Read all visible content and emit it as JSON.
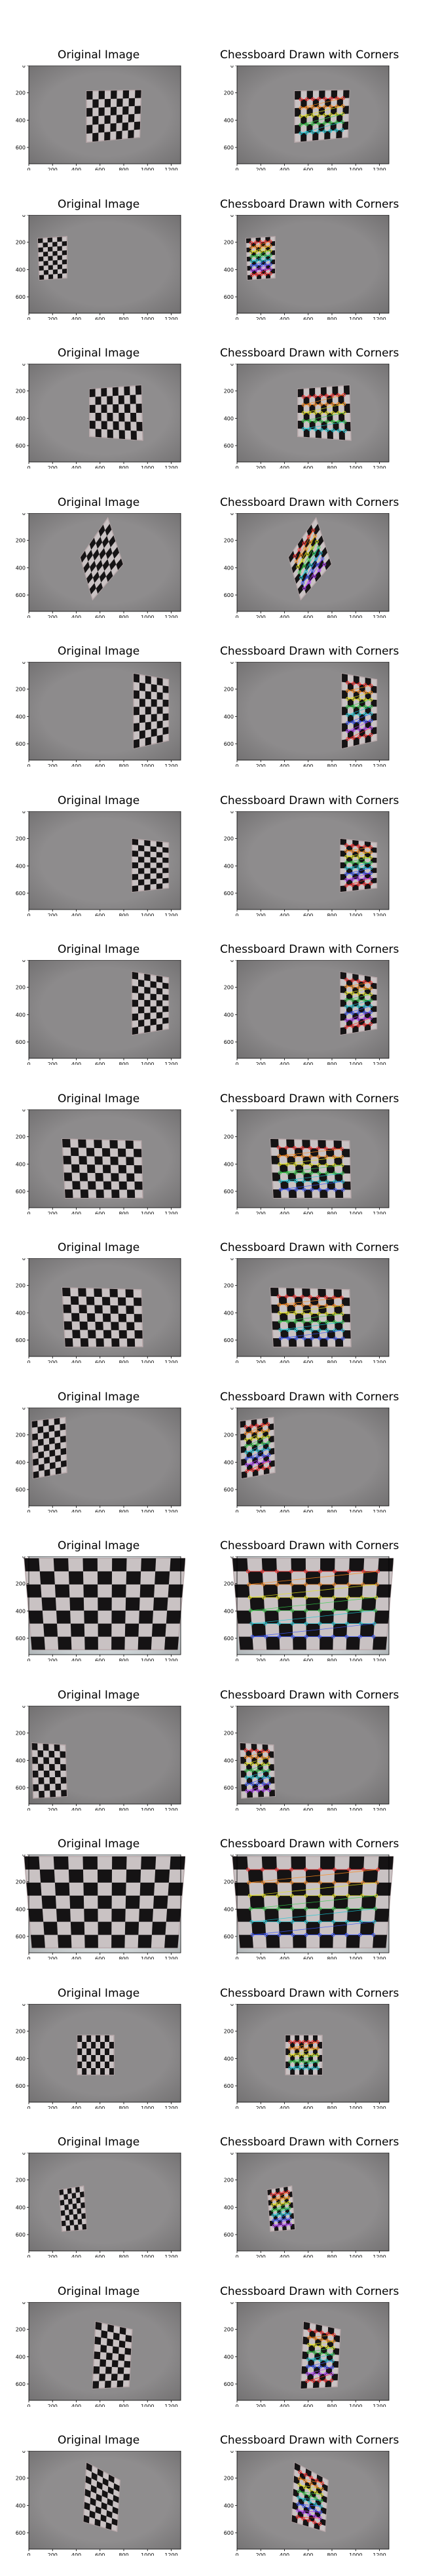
{
  "figure": {
    "left_title": "Original Image",
    "right_title": "Chessboard Drawn with Corners",
    "x_ticks": [
      "0",
      "200",
      "400",
      "600",
      "800",
      "1000",
      "1200"
    ],
    "y_ticks": [
      "0",
      "200",
      "400",
      "600"
    ]
  },
  "rows": [
    {
      "board": "center-top",
      "background": "#8d8b8c"
    },
    {
      "board": "left-small",
      "background": "#8c8a8b"
    },
    {
      "board": "right-wide",
      "background": "#8f8d8e"
    },
    {
      "board": "rotated",
      "background": "#8e8c8d"
    },
    {
      "board": "right-edge",
      "background": "#8d8b8c"
    },
    {
      "board": "right-mid",
      "background": "#8e8c8d"
    },
    {
      "board": "right-upper",
      "background": "#8c8a8b"
    },
    {
      "board": "center-large",
      "background": "#8d8b8c"
    },
    {
      "board": "center-large",
      "background": "#8d8b8c"
    },
    {
      "board": "left-edge",
      "background": "#8c8a8b"
    },
    {
      "board": "full-frame",
      "background": "#d6dde0"
    },
    {
      "board": "left-lower",
      "background": "#8b898a"
    },
    {
      "board": "full-frame",
      "background": "#d8dee0"
    },
    {
      "board": "center-small",
      "background": "#8d8b8c"
    },
    {
      "board": "left-center-tilt",
      "background": "#8e8c8d"
    },
    {
      "board": "center-right",
      "background": "#8d8b8c"
    },
    {
      "board": "center-tilt",
      "background": "#8f8d8e"
    }
  ]
}
